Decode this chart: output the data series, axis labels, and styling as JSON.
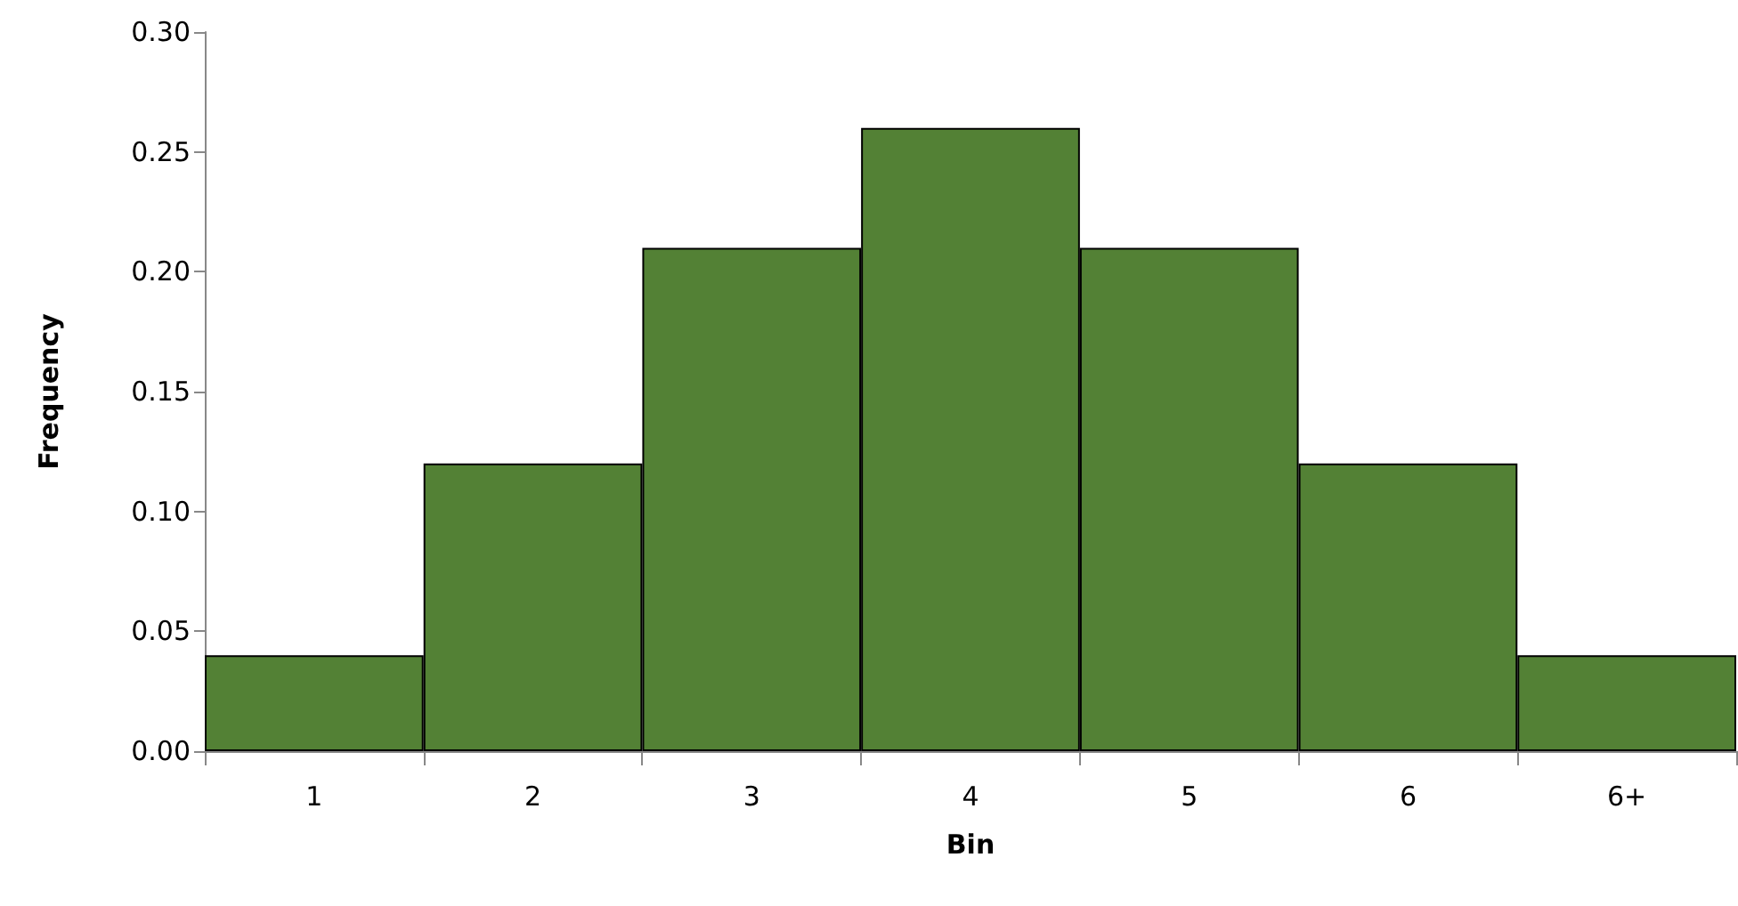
{
  "chart_data": {
    "type": "bar",
    "xlabel": "Bin",
    "ylabel": "Frequency",
    "categories": [
      "1",
      "2",
      "3",
      "4",
      "5",
      "6",
      "6+"
    ],
    "values": [
      0.04,
      0.12,
      0.21,
      0.26,
      0.21,
      0.12,
      0.04
    ],
    "color": "#538135",
    "ylim": [
      0,
      0.3
    ],
    "yticks": [
      {
        "value": 0,
        "label": "0.00"
      },
      {
        "value": 0.05,
        "label": "0.05"
      },
      {
        "value": 0.1,
        "label": "0.10"
      },
      {
        "value": 0.15,
        "label": "0.15"
      },
      {
        "value": 0.2,
        "label": "0.20"
      },
      {
        "value": 0.25,
        "label": "0.25"
      },
      {
        "value": 0.3,
        "label": "0.30"
      }
    ],
    "grid": false
  }
}
